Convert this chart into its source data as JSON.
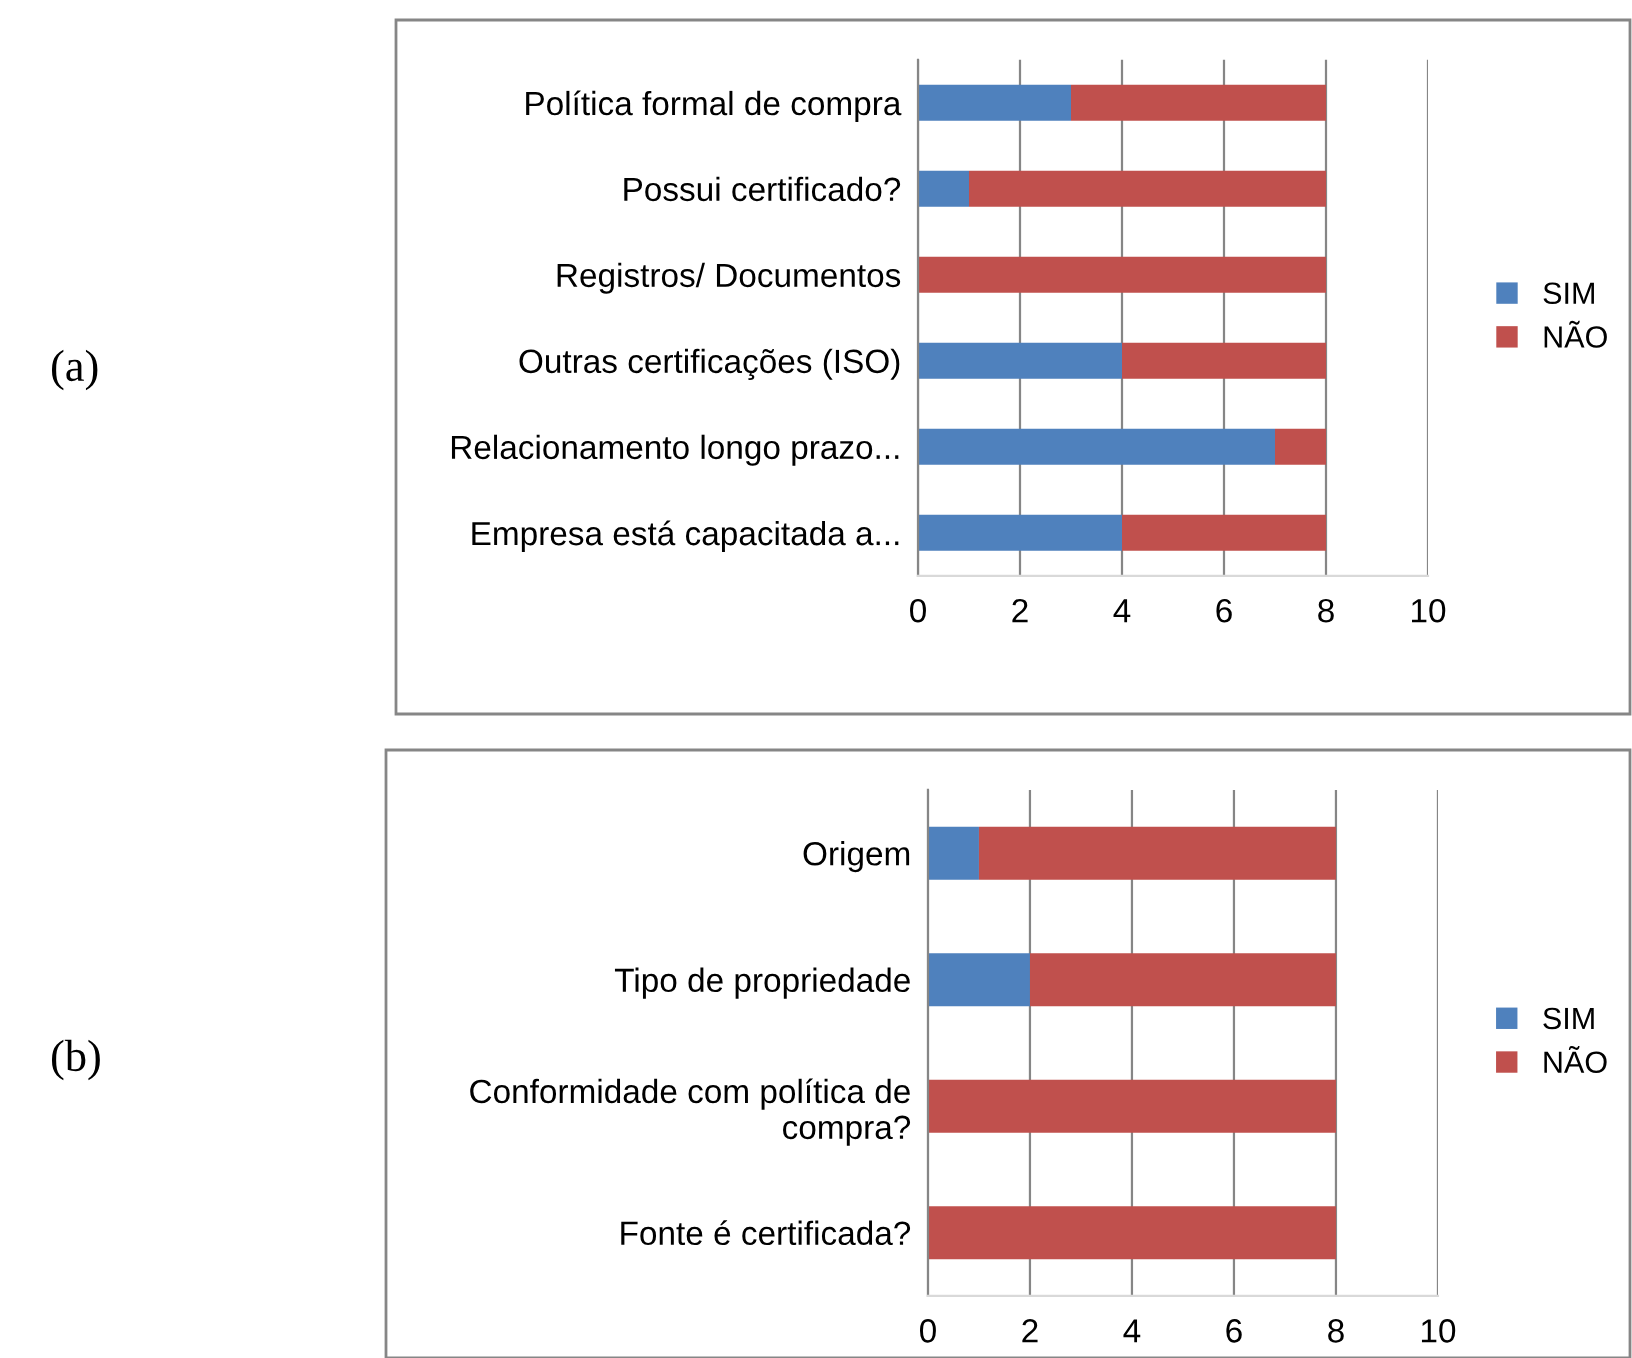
{
  "chart_data": [
    {
      "type": "bar",
      "orientation": "horizontal",
      "stacked": true,
      "annotations": [
        "(a)"
      ],
      "categories": [
        "Política formal de compra",
        "Possui certificado?",
        "Registros/ Documentos",
        "Outras certificações (ISO)",
        "Relacionamento longo prazo...",
        "Empresa está capacitada a..."
      ],
      "series": [
        {
          "name": "SIM",
          "color": "#4f81bd",
          "values": [
            3,
            1,
            0,
            4,
            7,
            4
          ]
        },
        {
          "name": "NÃO",
          "color": "#c0504d",
          "values": [
            5,
            7,
            8,
            4,
            1,
            4
          ]
        }
      ],
      "xlim": [
        0,
        10
      ],
      "xticks": [
        0,
        2,
        4,
        6,
        8,
        10
      ],
      "grid": "x",
      "legend": "right"
    },
    {
      "type": "bar",
      "orientation": "horizontal",
      "stacked": true,
      "annotations": [
        "(b)"
      ],
      "categories": [
        "Origem",
        "Tipo de propriedade",
        "Conformidade com política de\ncompra?",
        "Fonte é certificada?"
      ],
      "series": [
        {
          "name": "SIM",
          "color": "#4f81bd",
          "values": [
            1,
            2,
            0,
            0
          ]
        },
        {
          "name": "NÃO",
          "color": "#c0504d",
          "values": [
            7,
            6,
            8,
            8
          ]
        }
      ],
      "xlim": [
        0,
        10
      ],
      "xticks": [
        0,
        2,
        4,
        6,
        8,
        10
      ],
      "grid": "x",
      "legend": "right"
    }
  ]
}
